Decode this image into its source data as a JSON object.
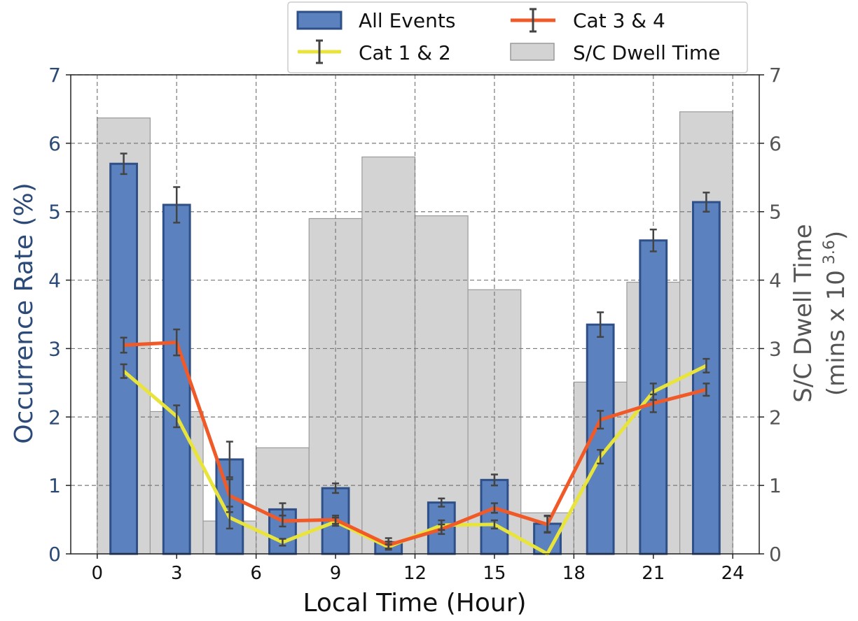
{
  "chart_data": {
    "type": "bar",
    "xlabel": "Local Time (Hour)",
    "ylabel": "Occurrence Rate (%)",
    "y2label": "S/C Dwell Time",
    "y2label_units_prefix": "(mins x 10",
    "y2label_units_exp": "3.6",
    "y2label_units_suffix": ")",
    "xlim": [
      -1,
      25
    ],
    "ylim": [
      0,
      7
    ],
    "y2lim": [
      0,
      7
    ],
    "x_ticks": [
      0,
      3,
      6,
      9,
      12,
      15,
      18,
      21,
      24
    ],
    "y_ticks": [
      0,
      1,
      2,
      3,
      4,
      5,
      6,
      7
    ],
    "y2_ticks": [
      0,
      1,
      2,
      3,
      4,
      5,
      6,
      7
    ],
    "grid": true,
    "legend_position": "top-right",
    "colors": {
      "all_events": "#5b82be",
      "all_events_edge": "#2e4f87",
      "cat12": "#e8e43c",
      "cat34": "#f05a28",
      "dwell": "#d3d3d3",
      "dwell_edge": "#9a9a9a",
      "errorbar": "#444444"
    },
    "dwell_time": {
      "name": "S/C Dwell Time",
      "bin_width": 2,
      "x": [
        1,
        3,
        5,
        7,
        9,
        11,
        13,
        15,
        17,
        19,
        21,
        23
      ],
      "values": [
        6.37,
        2.08,
        0.48,
        1.55,
        4.9,
        5.8,
        4.94,
        3.86,
        0.6,
        2.51,
        3.97,
        6.46
      ]
    },
    "series": [
      {
        "name": "All Events",
        "kind": "bar",
        "x": [
          1,
          3,
          5,
          7,
          9,
          11,
          13,
          15,
          17,
          19,
          21,
          23
        ],
        "values": [
          5.7,
          5.1,
          1.38,
          0.65,
          0.96,
          0.17,
          0.75,
          1.08,
          0.44,
          3.35,
          4.58,
          5.14
        ],
        "errors": [
          0.15,
          0.26,
          0.26,
          0.09,
          0.07,
          0.06,
          0.06,
          0.08,
          0.12,
          0.18,
          0.16,
          0.14
        ]
      },
      {
        "name": "Cat 1 & 2",
        "kind": "line",
        "x": [
          1,
          3,
          5,
          7,
          9,
          11,
          13,
          15,
          17,
          19,
          21,
          23
        ],
        "values": [
          2.67,
          2.01,
          0.53,
          0.17,
          0.47,
          0.1,
          0.42,
          0.43,
          0.0,
          1.42,
          2.37,
          2.75
        ],
        "errors": [
          0.1,
          0.16,
          0.16,
          0.05,
          0.06,
          0.04,
          0.07,
          0.06,
          0.0,
          0.1,
          0.12,
          0.1
        ]
      },
      {
        "name": "Cat 3 & 4",
        "kind": "line",
        "x": [
          1,
          3,
          5,
          7,
          9,
          11,
          13,
          15,
          17,
          19,
          21,
          23
        ],
        "values": [
          3.05,
          3.09,
          0.85,
          0.48,
          0.5,
          0.13,
          0.36,
          0.67,
          0.43,
          1.96,
          2.2,
          2.4
        ],
        "errors": [
          0.11,
          0.19,
          0.24,
          0.08,
          0.06,
          0.05,
          0.07,
          0.07,
          0.12,
          0.13,
          0.13,
          0.09
        ]
      }
    ]
  }
}
